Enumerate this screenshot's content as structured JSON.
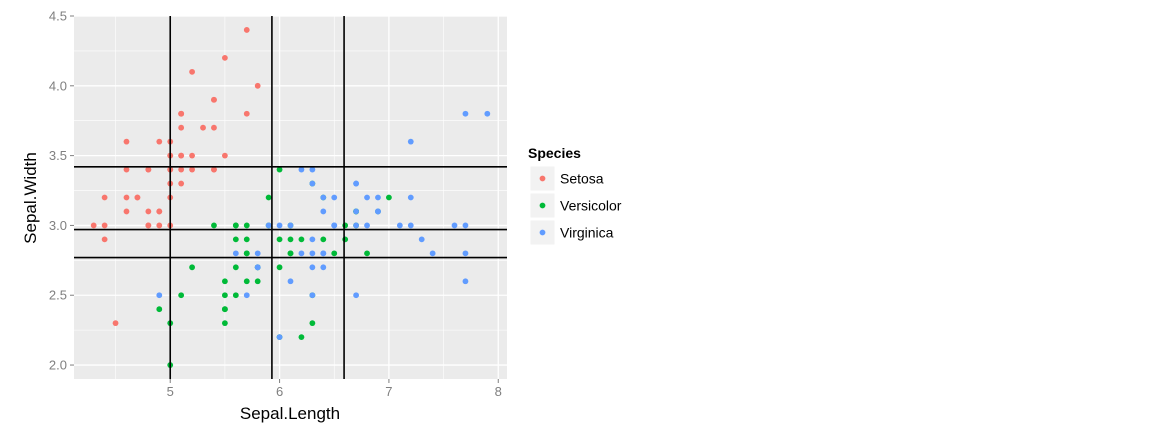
{
  "chart_data": {
    "type": "scatter",
    "title": "",
    "xlabel": "Sepal.Length",
    "ylabel": "Sepal.Width",
    "xlim": [
      4.12,
      8.08
    ],
    "ylim": [
      1.9,
      4.5
    ],
    "xticks": [
      5,
      6,
      7,
      8
    ],
    "yticks": [
      2.0,
      2.5,
      3.0,
      3.5,
      4.0,
      4.5
    ],
    "ytick_labels": [
      "2.0",
      "2.5",
      "3.0",
      "3.5",
      "4.0",
      "4.5"
    ],
    "grid": true,
    "legend": {
      "title": "Species",
      "position": "right"
    },
    "vlines": [
      5.0,
      5.93,
      6.59
    ],
    "hlines": [
      2.77,
      2.97,
      3.42
    ],
    "colors": {
      "panel_bg": "#ebebeb",
      "grid": "#ffffff",
      "axis_text": "#7f7f7f",
      "guide_lines": "#000000"
    },
    "series": [
      {
        "name": "Setosa",
        "color": "#f8766d",
        "points": [
          [
            5.1,
            3.5
          ],
          [
            4.9,
            3.0
          ],
          [
            4.7,
            3.2
          ],
          [
            4.6,
            3.1
          ],
          [
            5.0,
            3.6
          ],
          [
            5.4,
            3.9
          ],
          [
            4.6,
            3.4
          ],
          [
            5.0,
            3.4
          ],
          [
            4.4,
            2.9
          ],
          [
            4.9,
            3.1
          ],
          [
            5.4,
            3.7
          ],
          [
            4.8,
            3.4
          ],
          [
            4.8,
            3.0
          ],
          [
            4.3,
            3.0
          ],
          [
            5.8,
            4.0
          ],
          [
            5.7,
            4.4
          ],
          [
            5.4,
            3.9
          ],
          [
            5.1,
            3.5
          ],
          [
            5.7,
            3.8
          ],
          [
            5.1,
            3.8
          ],
          [
            5.4,
            3.4
          ],
          [
            5.1,
            3.7
          ],
          [
            4.6,
            3.6
          ],
          [
            5.1,
            3.3
          ],
          [
            4.8,
            3.4
          ],
          [
            5.0,
            3.0
          ],
          [
            5.0,
            3.4
          ],
          [
            5.2,
            3.5
          ],
          [
            5.2,
            3.4
          ],
          [
            4.7,
            3.2
          ],
          [
            4.8,
            3.1
          ],
          [
            5.4,
            3.4
          ],
          [
            5.2,
            4.1
          ],
          [
            5.5,
            4.2
          ],
          [
            4.9,
            3.1
          ],
          [
            5.0,
            3.2
          ],
          [
            5.5,
            3.5
          ],
          [
            4.9,
            3.6
          ],
          [
            4.4,
            3.0
          ],
          [
            5.1,
            3.4
          ],
          [
            5.0,
            3.5
          ],
          [
            4.5,
            2.3
          ],
          [
            4.4,
            3.2
          ],
          [
            5.0,
            3.5
          ],
          [
            5.1,
            3.8
          ],
          [
            4.8,
            3.0
          ],
          [
            5.1,
            3.8
          ],
          [
            4.6,
            3.2
          ],
          [
            5.3,
            3.7
          ],
          [
            5.0,
            3.3
          ]
        ]
      },
      {
        "name": "Versicolor",
        "color": "#00ba38",
        "points": [
          [
            7.0,
            3.2
          ],
          [
            6.4,
            3.2
          ],
          [
            6.9,
            3.1
          ],
          [
            5.5,
            2.3
          ],
          [
            6.5,
            2.8
          ],
          [
            5.7,
            2.8
          ],
          [
            6.3,
            3.3
          ],
          [
            4.9,
            2.4
          ],
          [
            6.6,
            2.9
          ],
          [
            5.2,
            2.7
          ],
          [
            5.0,
            2.0
          ],
          [
            5.9,
            3.0
          ],
          [
            6.0,
            2.2
          ],
          [
            6.1,
            2.9
          ],
          [
            5.6,
            2.9
          ],
          [
            6.7,
            3.1
          ],
          [
            5.6,
            3.0
          ],
          [
            5.8,
            2.7
          ],
          [
            6.2,
            2.2
          ],
          [
            5.6,
            2.5
          ],
          [
            5.9,
            3.2
          ],
          [
            6.1,
            2.8
          ],
          [
            6.3,
            2.5
          ],
          [
            6.1,
            2.8
          ],
          [
            6.4,
            2.9
          ],
          [
            6.6,
            3.0
          ],
          [
            6.8,
            2.8
          ],
          [
            6.7,
            3.0
          ],
          [
            6.0,
            2.9
          ],
          [
            5.7,
            2.6
          ],
          [
            5.5,
            2.4
          ],
          [
            5.5,
            2.4
          ],
          [
            5.8,
            2.7
          ],
          [
            6.0,
            2.7
          ],
          [
            5.4,
            3.0
          ],
          [
            6.0,
            3.4
          ],
          [
            6.7,
            3.1
          ],
          [
            6.3,
            2.3
          ],
          [
            5.6,
            3.0
          ],
          [
            5.5,
            2.5
          ],
          [
            5.5,
            2.6
          ],
          [
            6.1,
            3.0
          ],
          [
            5.8,
            2.6
          ],
          [
            5.0,
            2.3
          ],
          [
            5.6,
            2.7
          ],
          [
            5.7,
            3.0
          ],
          [
            5.7,
            2.9
          ],
          [
            6.2,
            2.9
          ],
          [
            5.1,
            2.5
          ],
          [
            5.7,
            2.8
          ]
        ]
      },
      {
        "name": "Virginica",
        "color": "#619cff",
        "points": [
          [
            6.3,
            3.3
          ],
          [
            5.8,
            2.7
          ],
          [
            7.1,
            3.0
          ],
          [
            6.3,
            2.9
          ],
          [
            6.5,
            3.0
          ],
          [
            7.6,
            3.0
          ],
          [
            4.9,
            2.5
          ],
          [
            7.3,
            2.9
          ],
          [
            6.7,
            2.5
          ],
          [
            7.2,
            3.6
          ],
          [
            6.5,
            3.2
          ],
          [
            6.4,
            2.7
          ],
          [
            6.8,
            3.0
          ],
          [
            5.7,
            2.5
          ],
          [
            5.8,
            2.8
          ],
          [
            6.4,
            3.2
          ],
          [
            6.5,
            3.0
          ],
          [
            7.7,
            3.8
          ],
          [
            7.7,
            2.6
          ],
          [
            6.0,
            2.2
          ],
          [
            6.9,
            3.2
          ],
          [
            5.6,
            2.8
          ],
          [
            7.7,
            2.8
          ],
          [
            6.3,
            2.7
          ],
          [
            6.7,
            3.3
          ],
          [
            7.2,
            3.2
          ],
          [
            6.2,
            2.8
          ],
          [
            6.1,
            3.0
          ],
          [
            6.4,
            2.8
          ],
          [
            7.2,
            3.0
          ],
          [
            7.4,
            2.8
          ],
          [
            7.9,
            3.8
          ],
          [
            6.4,
            2.8
          ],
          [
            6.3,
            2.8
          ],
          [
            6.1,
            2.6
          ],
          [
            7.7,
            3.0
          ],
          [
            6.3,
            3.4
          ],
          [
            6.4,
            3.1
          ],
          [
            6.0,
            3.0
          ],
          [
            6.9,
            3.1
          ],
          [
            6.7,
            3.1
          ],
          [
            6.9,
            3.1
          ],
          [
            5.8,
            2.7
          ],
          [
            6.8,
            3.2
          ],
          [
            6.7,
            3.3
          ],
          [
            6.7,
            3.0
          ],
          [
            6.3,
            2.5
          ],
          [
            6.5,
            3.0
          ],
          [
            6.2,
            3.4
          ],
          [
            5.9,
            3.0
          ]
        ]
      }
    ]
  }
}
